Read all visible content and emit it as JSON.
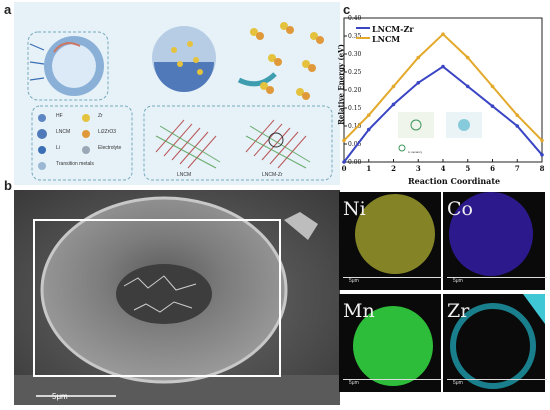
{
  "panels": {
    "a": "a",
    "b": "b",
    "c": "c"
  },
  "schematic": {
    "legend": [
      "HF",
      "Zr",
      "LNCM",
      "Li2ZrO3",
      "Li",
      "Electrolyte",
      "Transition metals"
    ],
    "structure_labels": [
      "LNCM",
      "LNCM-Zr"
    ]
  },
  "sem": {
    "scale_label": "5μm"
  },
  "chart_data": {
    "type": "line",
    "xlabel": "Reaction Coordinate",
    "ylabel": "Relative Energy (eV)",
    "xlim": [
      0,
      8
    ],
    "ylim": [
      0,
      0.4
    ],
    "x_ticks": [
      "0",
      "1",
      "2",
      "3",
      "4",
      "5",
      "6",
      "7",
      "8"
    ],
    "y_ticks": [
      "0.00",
      "0.05",
      "0.10",
      "0.15",
      "0.20",
      "0.25",
      "0.30",
      "0.35",
      "0.40"
    ],
    "legend_position": "top-left",
    "inset_label": "Li vacancy",
    "series": [
      {
        "name": "LNCM-Zr",
        "color": "#3a45c4",
        "x": [
          0,
          1,
          2,
          3,
          4,
          5,
          6,
          7,
          8
        ],
        "values": [
          0.0,
          0.09,
          0.16,
          0.22,
          0.265,
          0.21,
          0.155,
          0.1,
          0.02
        ]
      },
      {
        "name": "LNCM",
        "color": "#e3a92b",
        "x": [
          0,
          1,
          2,
          3,
          4,
          5,
          6,
          7,
          8
        ],
        "values": [
          0.06,
          0.13,
          0.21,
          0.29,
          0.355,
          0.29,
          0.21,
          0.13,
          0.06
        ]
      }
    ]
  },
  "eds": [
    {
      "element": "Ni",
      "scale": "5μm",
      "color": "#9a9a2c"
    },
    {
      "element": "Co",
      "scale": "5μm",
      "color": "#2c1a8c"
    },
    {
      "element": "Mn",
      "scale": "5μm",
      "color": "#2ebd3a"
    },
    {
      "element": "Zr",
      "scale": "5μm",
      "color": "#1a7f8c"
    }
  ]
}
